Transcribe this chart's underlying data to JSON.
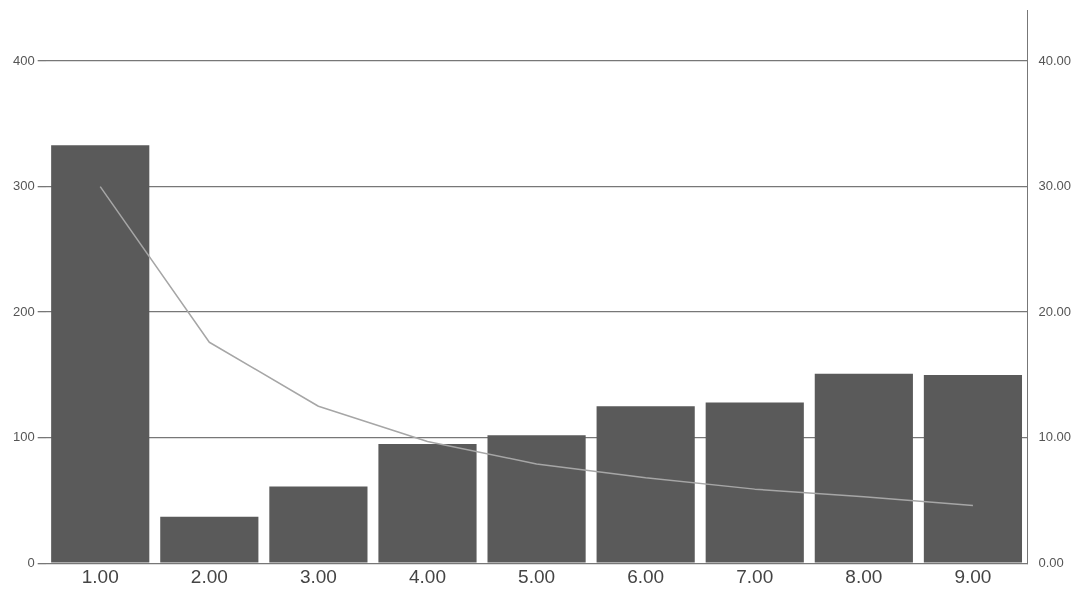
{
  "chart_data": {
    "type": "bar",
    "categories": [
      "1.00",
      "2.00",
      "3.00",
      "4.00",
      "5.00",
      "6.00",
      "7.00",
      "8.00",
      "9.00"
    ],
    "series": [
      {
        "color": "#5a5a5a",
        "values": [
          333,
          37,
          61,
          95,
          102,
          125,
          128,
          151,
          150
        ]
      },
      {
        "type": "line",
        "axis": "y2",
        "color": "#a6a6a6",
        "values": [
          30.0,
          17.6,
          12.5,
          9.7,
          7.9,
          6.8,
          5.9,
          5.3,
          4.6
        ]
      }
    ],
    "ylim": [
      0,
      440
    ],
    "yticks": [
      0,
      100,
      200,
      300,
      400
    ],
    "y2lim": [
      0,
      44
    ],
    "y2ticks": [
      {
        "value": 0,
        "label": "0.00"
      },
      {
        "value": 10,
        "label": "10.00"
      },
      {
        "value": 20,
        "label": "20.00"
      },
      {
        "value": 30,
        "label": "30.00"
      },
      {
        "value": 40,
        "label": "40.00"
      }
    ],
    "grid": "y",
    "marker": "none"
  }
}
